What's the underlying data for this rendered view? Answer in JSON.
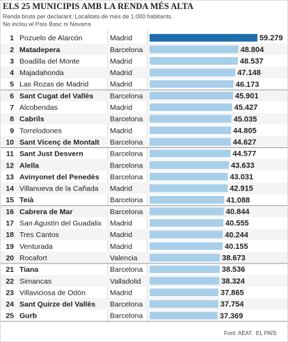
{
  "chart_data": {
    "type": "bar",
    "title": "ELS 25 MUNICIPIS AMB LA RENDA MÉS ALTA",
    "subtitle": [
      "Renda bruta per declarant. Localitats de més de 1.000 habitants.",
      "No inclou el País Basc ni Navarra"
    ],
    "ranks": [
      1,
      2,
      3,
      4,
      5,
      6,
      7,
      8,
      9,
      10,
      11,
      12,
      13,
      14,
      15,
      16,
      17,
      18,
      19,
      20,
      21,
      22,
      23,
      24,
      25
    ],
    "categories": [
      "Pozuelo de Alarcón",
      "Matadepera",
      "Boadilla del Monte",
      "Majadahonda",
      "Las Rozas de Madrid",
      "Sant Cugat del Vallès",
      "Alcobendas",
      "Cabrils",
      "Torrelodones",
      "Sant Vicenç de Montalt",
      "Sant Just Desvern",
      "Alella",
      "Avinyonet del Penedès",
      "Villanueva de la Cañada",
      "Teià",
      "Cabrera de Mar",
      "San Agustín del Guadalix",
      "Tres Cantos",
      "Venturada",
      "Rocafort",
      "Tiana",
      "Simancas",
      "Villaviciosa de Odón",
      "Sant Quirze del Vallès",
      "Gurb"
    ],
    "emphasis": [
      false,
      true,
      false,
      false,
      false,
      true,
      false,
      true,
      false,
      true,
      true,
      true,
      true,
      false,
      true,
      true,
      false,
      false,
      false,
      false,
      true,
      false,
      false,
      true,
      true
    ],
    "provinces": [
      "Madrid",
      "Barcelona",
      "Madrid",
      "Madrid",
      "Madrid",
      "Barcelona",
      "Madrid",
      "Barcelona",
      "Madrid",
      "Barcelona",
      "Barcelona",
      "Barcelona",
      "Barcelona",
      "Madrid",
      "Barcelona",
      "Barcelona",
      "Madrid",
      "Madrid",
      "Madrid",
      "Valencia",
      "Barcelona",
      "Valladolid",
      "Madrid",
      "Barcelona",
      "Barcelona"
    ],
    "values": [
      59279,
      48804,
      48537,
      47148,
      46173,
      45901,
      45427,
      45035,
      44805,
      44627,
      44577,
      43633,
      43031,
      42915,
      41088,
      40844,
      40555,
      40244,
      40155,
      38673,
      38536,
      38324,
      37865,
      37754,
      37369
    ],
    "value_labels": [
      "59.279",
      "48.804",
      "48.537",
      "47.148",
      "46.173",
      "45.901",
      "45.427",
      "45.035",
      "44.805",
      "44.627",
      "44.577",
      "43.633",
      "43.031",
      "42.915",
      "41.088",
      "40.844",
      "40.555",
      "40.244",
      "40.155",
      "38.673",
      "38.536",
      "38.324",
      "37.865",
      "37.754",
      "37.369"
    ],
    "color": "#a8cfe9",
    "highlight_color": "#1f6eab",
    "highlight_index": 0,
    "source": "Font: AEAT.",
    "credit": "EL PAÍS"
  }
}
